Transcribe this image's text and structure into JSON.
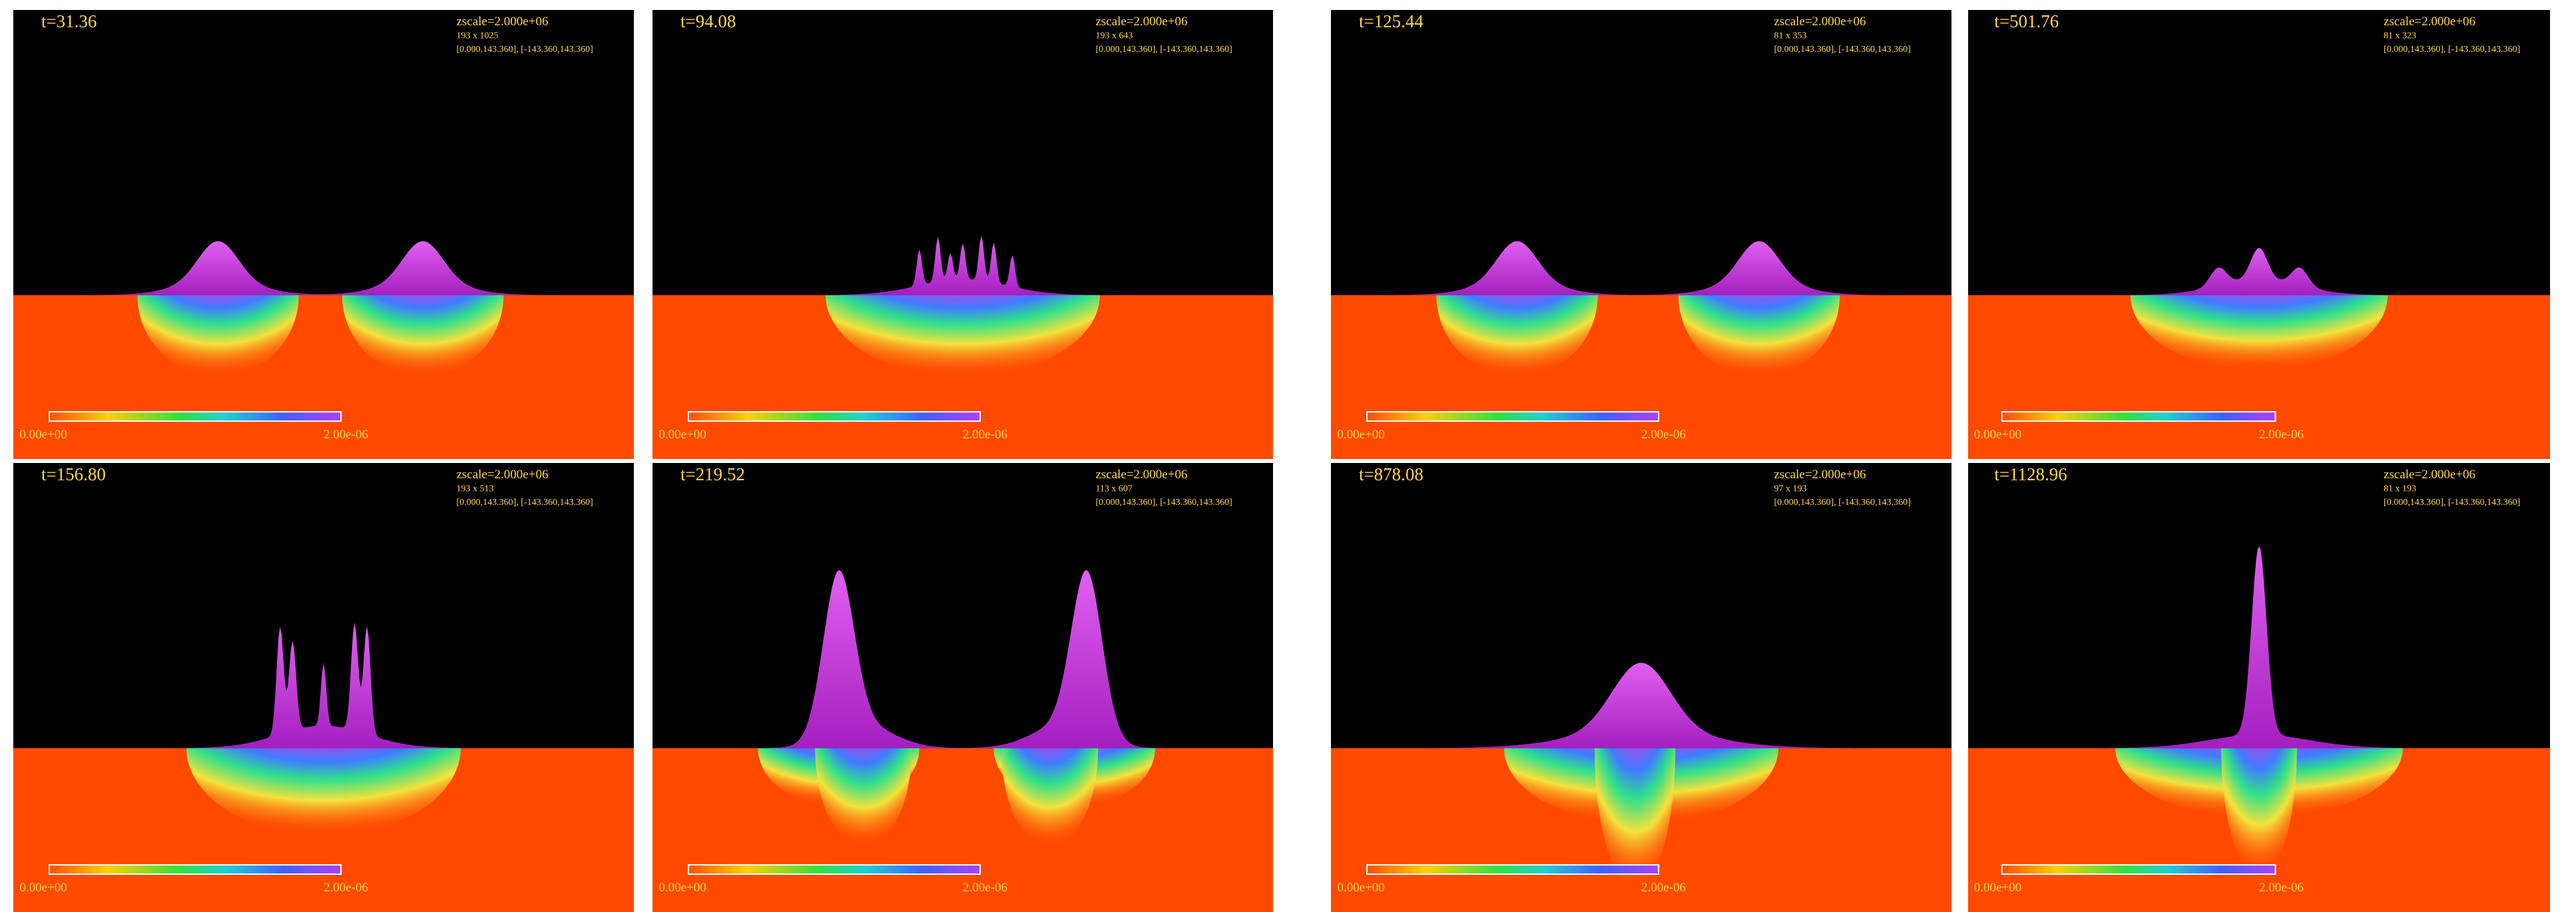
{
  "panels": [
    {
      "time": "t=31.36",
      "zscale": "zscale=2.000e+06",
      "grid": "193 x 1025",
      "range": "[0.000,143.360], [-143.360,143.360]",
      "cbar_min": "0.00e+00",
      "cbar_max": "2.00e-06"
    },
    {
      "time": "t=94.08",
      "zscale": "zscale=2.000e+06",
      "grid": "193 x 643",
      "range": "[0.000,143.360], [-143.360,143.360]",
      "cbar_min": "0.00e+00",
      "cbar_max": "2.00e-06"
    },
    {
      "time": "t=125.44",
      "zscale": "zscale=2.000e+06",
      "grid": "81 x 353",
      "range": "[0.000,143.360], [-143.360,143.360]",
      "cbar_min": "0.00e+00",
      "cbar_max": "2.00e-06"
    },
    {
      "time": "t=501.76",
      "zscale": "zscale=2.000e+06",
      "grid": "81 x 323",
      "range": "[0.000,143.360], [-143.360,143.360]",
      "cbar_min": "0.00e+00",
      "cbar_max": "2.00e-06"
    },
    {
      "time": "t=156.80",
      "zscale": "zscale=2.000e+06",
      "grid": "193 x 513",
      "range": "[0.000,143.360], [-143.360,143.360]",
      "cbar_min": "0.00e+00",
      "cbar_max": "2.00e-06"
    },
    {
      "time": "t=219.52",
      "zscale": "zscale=2.000e+06",
      "grid": "113 x 607",
      "range": "[0.000,143.360], [-143.360,143.360]",
      "cbar_min": "0.00e+00",
      "cbar_max": "2.00e-06"
    },
    {
      "time": "t=878.08",
      "zscale": "zscale=2.000e+06",
      "grid": "97 x 193",
      "range": "[0.000,143.360], [-143.360,143.360]",
      "cbar_min": "0.00e+00",
      "cbar_max": "2.00e-06"
    },
    {
      "time": "t=1128.96",
      "zscale": "zscale=2.000e+06",
      "grid": "81 x 193",
      "range": "[0.000,143.360], [-143.360,143.360]",
      "cbar_min": "0.00e+00",
      "cbar_max": "2.00e-06"
    }
  ]
}
